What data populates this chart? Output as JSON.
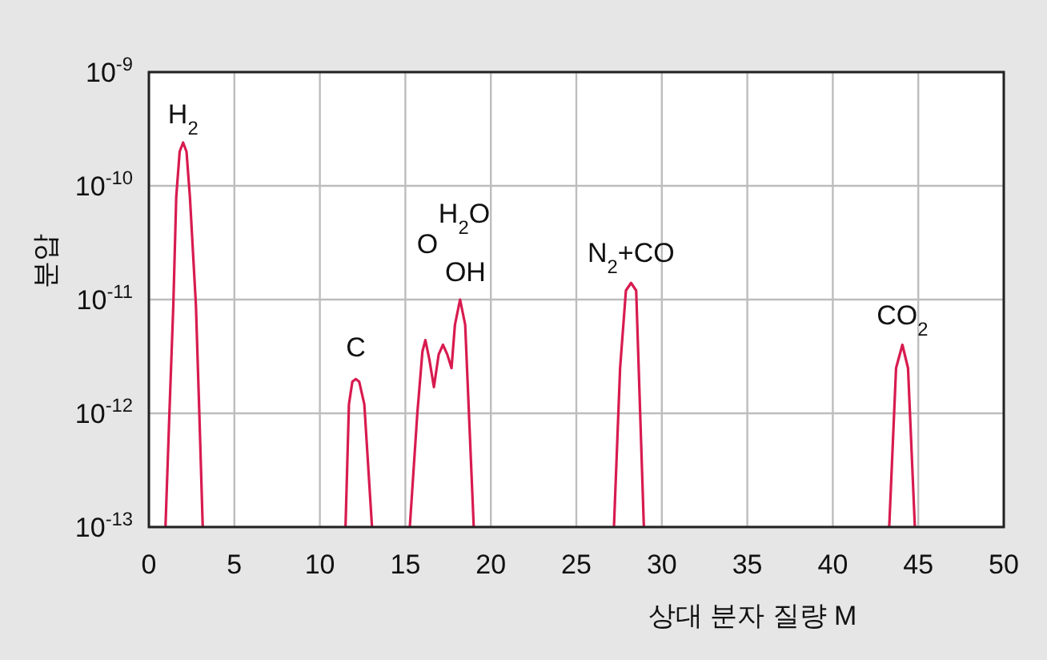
{
  "chart_data": {
    "type": "line",
    "xlabel": "상대 분자 질량 M",
    "ylabel": "분압",
    "log": "y",
    "grid": true,
    "xlim": [
      0,
      50
    ],
    "xticks": [
      0,
      5,
      10,
      15,
      20,
      25,
      30,
      35,
      40,
      45,
      50
    ],
    "ylim": [
      1e-13,
      1e-09
    ],
    "yticks": [
      {
        "value": 1e-13,
        "label": "10$^{-13}$"
      },
      {
        "value": 1e-12,
        "label": "10$^{-12}$"
      },
      {
        "value": 1e-11,
        "label": "10$^{-11}$"
      },
      {
        "value": 1e-10,
        "label": "10$^{-10}$"
      },
      {
        "value": 1e-09,
        "label": "10$^{-9}$"
      }
    ],
    "series": [
      {
        "color": "#d81b4f",
        "x": [
          0.97,
          1.2,
          1.43,
          1.6,
          1.8,
          2.0,
          2.2,
          2.4,
          2.75,
          2.95,
          3.15,
          null,
          11.5,
          11.7,
          11.9,
          12.1,
          12.3,
          12.6,
          13.05,
          null,
          15.26,
          15.7,
          16.0,
          16.17,
          16.4,
          16.67,
          16.95,
          17.2,
          17.45,
          17.7,
          17.9,
          18.2,
          18.5,
          19.0,
          null,
          27.2,
          27.56,
          27.9,
          28.2,
          28.5,
          28.95,
          null,
          43.3,
          43.7,
          44.07,
          44.4,
          44.8
        ],
        "values": [
          1e-13,
          1e-12,
          9e-12,
          8e-11,
          2e-10,
          2.4e-10,
          2e-10,
          8e-11,
          9e-12,
          1e-12,
          1e-13,
          null,
          1e-13,
          1.2e-12,
          1.9e-12,
          2e-12,
          1.9e-12,
          1.2e-12,
          1e-13,
          null,
          1e-13,
          1e-12,
          3.5e-12,
          4.4e-12,
          3e-12,
          1.7e-12,
          3.3e-12,
          4e-12,
          3.3e-12,
          2.5e-12,
          6e-12,
          1e-11,
          6e-12,
          1e-13,
          null,
          1e-13,
          2.5e-12,
          1.2e-11,
          1.4e-11,
          1.2e-11,
          1e-13,
          null,
          1e-13,
          2.5e-12,
          4e-12,
          2.5e-12,
          1e-13
        ]
      }
    ],
    "annotations": [
      {
        "text": "H$_{2}$",
        "x": 2.0,
        "y": 2.4e-10
      },
      {
        "text": "C",
        "x": 12.1,
        "y": 2e-12
      },
      "O",
      {
        "text": "OH",
        "x": 17.2,
        "y": 4e-12
      },
      "H$_{2}$O",
      {
        "text": "N$_{2}$+CO",
        "x": 28.2,
        "y": 1.4e-11
      },
      {
        "text": "CO$_{2}$",
        "x": 44.07,
        "y": 4e-12
      }
    ]
  }
}
